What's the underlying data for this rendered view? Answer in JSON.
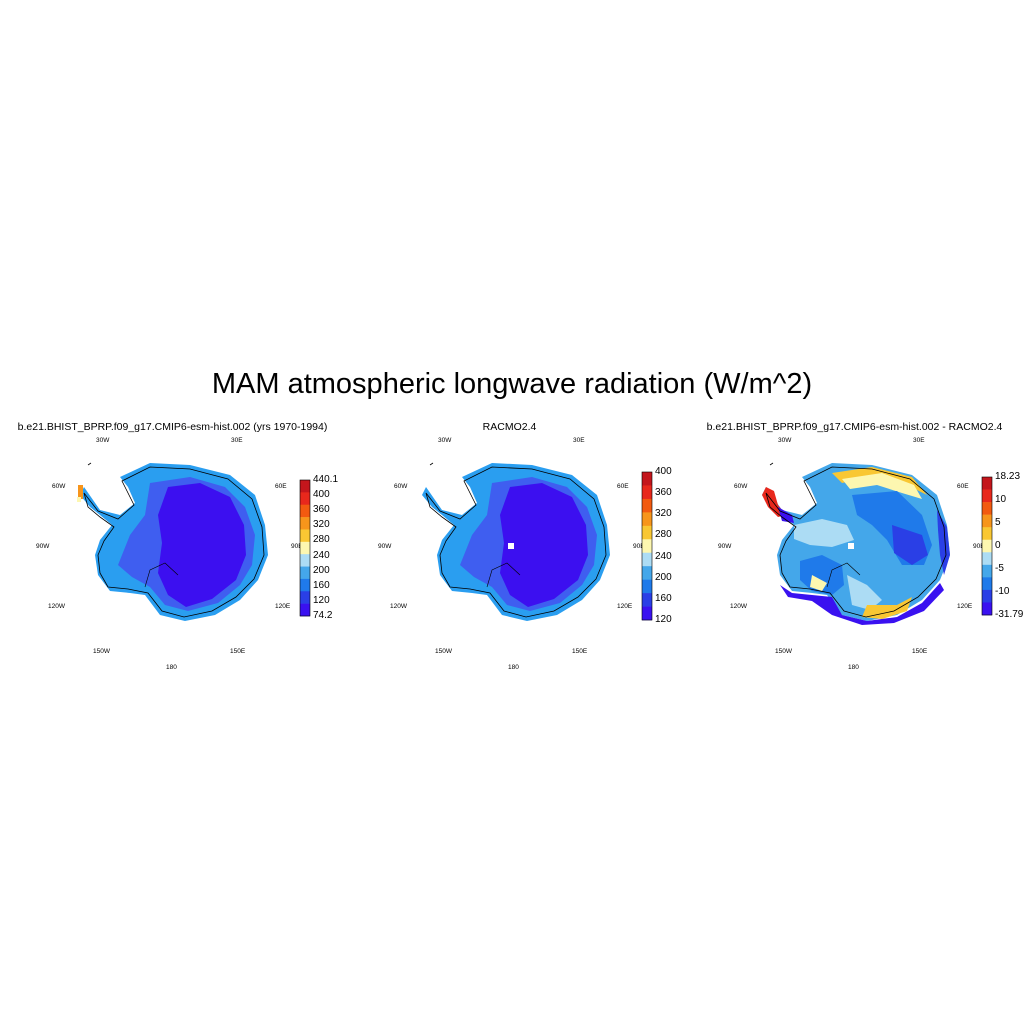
{
  "title": "MAM atmospheric longwave radiation (W/m^2)",
  "panels": [
    {
      "title": "b.e21.BHIST_BPRP.f09_g17.CMIP6-esm-hist.002 (yrs 1970-1994)",
      "colorbar_labels": [
        "440.1",
        "400",
        "360",
        "320",
        "280",
        "240",
        "200",
        "160",
        "120",
        "74.2"
      ],
      "colorbar_colors": [
        "#c4161c",
        "#e8281c",
        "#f25a10",
        "#f7951b",
        "#f9c733",
        "#fdf7b0",
        "#acdcf4",
        "#44a7ea",
        "#1f7aea",
        "#2a3fe6",
        "#3a11f0"
      ]
    },
    {
      "title": "RACMO2.4",
      "colorbar_labels": [
        "400",
        "360",
        "320",
        "280",
        "240",
        "200",
        "160",
        "120"
      ],
      "colorbar_colors": [
        "#c4161c",
        "#e8281c",
        "#f25a10",
        "#f7951b",
        "#f9c733",
        "#fdf7b0",
        "#acdcf4",
        "#44a7ea",
        "#1f7aea",
        "#2a3fe6",
        "#3a11f0"
      ]
    },
    {
      "title": "b.e21.BHIST_BPRP.f09_g17.CMIP6-esm-hist.002 - RACMO2.4",
      "colorbar_labels": [
        "18.23",
        "10",
        "5",
        "0",
        "-5",
        "-10",
        "-31.79"
      ],
      "colorbar_colors": [
        "#c4161c",
        "#e8281c",
        "#f25a10",
        "#f7951b",
        "#f9c733",
        "#fdf7b0",
        "#acdcf4",
        "#44a7ea",
        "#1f7aea",
        "#2a3fe6",
        "#3a11f0"
      ]
    }
  ],
  "longitude_labels": {
    "w30": "30W",
    "e30": "30E",
    "w60": "60W",
    "e60": "60E",
    "w90": "90W",
    "e90": "90E",
    "w120": "120W",
    "e120": "120E",
    "w150": "150W",
    "e150": "150E",
    "d180": "180"
  }
}
